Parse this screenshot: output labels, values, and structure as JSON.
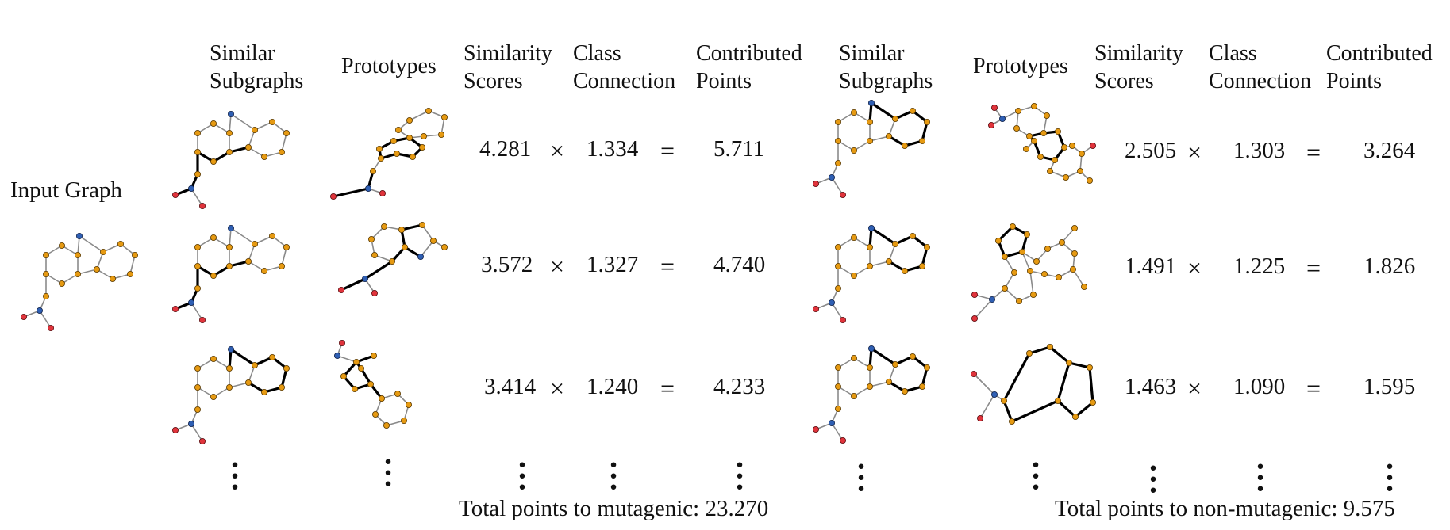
{
  "input_label": "Input Graph",
  "headers": {
    "left": {
      "similar_subgraphs": [
        "Similar",
        "Subgraphs"
      ],
      "prototypes": "Prototypes",
      "similarity_scores": [
        "Similarity",
        "Scores"
      ],
      "class_connection": [
        "Class",
        "Connection"
      ],
      "contributed_points": [
        "Contributed",
        "Points"
      ]
    },
    "right": {
      "similar_subgraphs": [
        "Similar",
        "Subgraphs"
      ],
      "prototypes": "Prototypes",
      "similarity_scores": [
        "Similarity",
        "Scores"
      ],
      "class_connection": [
        "Class",
        "Connection"
      ],
      "contributed_points": [
        "Contributed",
        "Points"
      ]
    }
  },
  "operators": {
    "times": "×",
    "equals": "="
  },
  "mutagenic": {
    "rows": [
      {
        "similarity": "4.281",
        "connection": "1.334",
        "points": "5.711"
      },
      {
        "similarity": "3.572",
        "connection": "1.327",
        "points": "4.740"
      },
      {
        "similarity": "3.414",
        "connection": "1.240",
        "points": "4.233"
      }
    ],
    "total": "Total points to mutagenic: 23.270"
  },
  "non_mutagenic": {
    "rows": [
      {
        "similarity": "2.505",
        "connection": "1.303",
        "points": "3.264"
      },
      {
        "similarity": "1.491",
        "connection": "1.225",
        "points": "1.826"
      },
      {
        "similarity": "1.463",
        "connection": "1.090",
        "points": "1.595"
      }
    ],
    "total": "Total points to non-mutagenic: 9.575"
  },
  "atom_colors": {
    "carbon": "#e69a12",
    "nitrogen": "#2f5fb3",
    "oxygen": "#e0343c",
    "highlight_bond": "#000000",
    "bond": "#8a8a8a"
  }
}
